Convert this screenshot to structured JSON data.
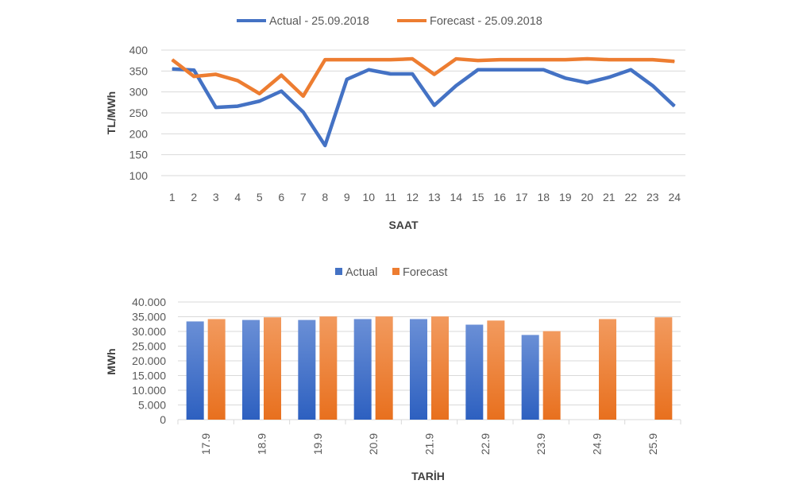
{
  "chart_data": [
    {
      "type": "line",
      "title": "",
      "xlabel": "SAAT",
      "ylabel": "TL/MWh",
      "ylim": [
        100,
        400
      ],
      "yticks": [
        "100",
        "150",
        "200",
        "250",
        "300",
        "350",
        "400"
      ],
      "ytick_values": [
        100,
        150,
        200,
        250,
        300,
        350,
        400
      ],
      "grid": true,
      "legend": "top",
      "categories": [
        "1",
        "2",
        "3",
        "4",
        "5",
        "6",
        "7",
        "8",
        "9",
        "10",
        "11",
        "12",
        "13",
        "14",
        "15",
        "16",
        "17",
        "18",
        "19",
        "20",
        "21",
        "22",
        "23",
        "24"
      ],
      "series": [
        {
          "name": "Actual - 25.09.2018",
          "color": "#4472c4",
          "values": [
            355,
            352,
            263,
            266,
            278,
            302,
            252,
            172,
            330,
            353,
            343,
            343,
            268,
            315,
            353,
            353,
            353,
            353,
            333,
            322,
            335,
            353,
            315,
            266
          ]
        },
        {
          "name": "Forecast - 25.09.2018",
          "color": "#ed7d31",
          "values": [
            377,
            337,
            342,
            327,
            296,
            340,
            290,
            377,
            377,
            377,
            377,
            379,
            342,
            379,
            375,
            377,
            377,
            377,
            377,
            379,
            377,
            377,
            377,
            373
          ]
        }
      ]
    },
    {
      "type": "bar",
      "title": "",
      "xlabel": "TARİH",
      "ylabel": "MWh",
      "ylim": [
        0,
        40000
      ],
      "yticks": [
        "0",
        "5.000",
        "10.000",
        "15.000",
        "20.000",
        "25.000",
        "30.000",
        "35.000",
        "40.000"
      ],
      "ytick_values": [
        0,
        5000,
        10000,
        15000,
        20000,
        25000,
        30000,
        35000,
        40000
      ],
      "grid": true,
      "legend": "top",
      "categories": [
        "17.9",
        "18.9",
        "19.9",
        "20.9",
        "21.9",
        "22.9",
        "23.9",
        "24.9",
        "25.9"
      ],
      "series": [
        {
          "name": "Actual",
          "color": "#4472c4",
          "values": [
            33400,
            33900,
            33900,
            34200,
            34200,
            32300,
            28800,
            null,
            null
          ]
        },
        {
          "name": "Forecast",
          "color": "#ed7d31",
          "values": [
            34200,
            34800,
            35100,
            35100,
            35100,
            33700,
            30100,
            34200,
            34800
          ]
        }
      ]
    }
  ]
}
